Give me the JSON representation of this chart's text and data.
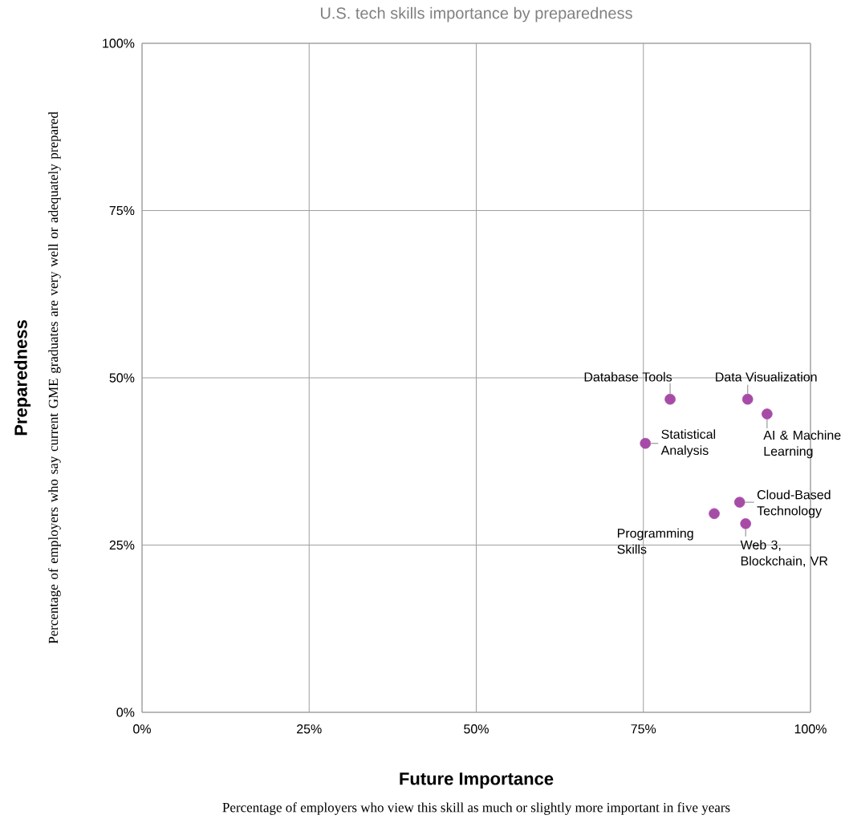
{
  "chart_data": {
    "type": "scatter",
    "title": "U.S. tech skills importance by preparedness",
    "xlabel": "Future Importance",
    "ylabel": "Preparedness",
    "xlim": [
      0,
      100
    ],
    "ylim": [
      0,
      100
    ],
    "xticks": [
      {
        "value": 0,
        "label": "0%"
      },
      {
        "value": 25,
        "label": "25%"
      },
      {
        "value": 50,
        "label": "50%"
      },
      {
        "value": 75,
        "label": "75%"
      },
      {
        "value": 100,
        "label": "100%"
      }
    ],
    "yticks": [
      {
        "value": 0,
        "label": "0%"
      },
      {
        "value": 25,
        "label": "25%"
      },
      {
        "value": 50,
        "label": "50%"
      },
      {
        "value": 75,
        "label": "75%"
      },
      {
        "value": 100,
        "label": "100%"
      }
    ],
    "grid": true,
    "series": [
      {
        "color": "#a64ca6",
        "x": [
          79.0,
          90.6,
          93.5,
          75.3,
          89.4,
          85.6,
          90.3
        ],
        "values": [
          46.8,
          46.8,
          44.6,
          40.2,
          31.4,
          29.7,
          28.2
        ]
      }
    ],
    "annotations": [
      {
        "text": "Database Tools",
        "x": 79.0,
        "y": 46.8
      },
      {
        "text": "Data Visualization",
        "x": 90.6,
        "y": 46.8
      },
      {
        "text": "AI & Machine Learning",
        "x": 93.5,
        "y": 44.6
      },
      {
        "text": "Statistical Analysis",
        "x": 75.3,
        "y": 40.2
      },
      {
        "text": "Cloud-Based Technology",
        "x": 89.4,
        "y": 31.4
      },
      {
        "text": "Programming Skills",
        "x": 85.6,
        "y": 29.7
      },
      {
        "text": "Web 3, Blockchain, VR",
        "x": 90.3,
        "y": 28.2
      },
      "Percentage of employers who view this skill as much or slightly more important in five years",
      "Percentage of employers who say current GME graduates are very well or adequately prepared"
    ]
  }
}
